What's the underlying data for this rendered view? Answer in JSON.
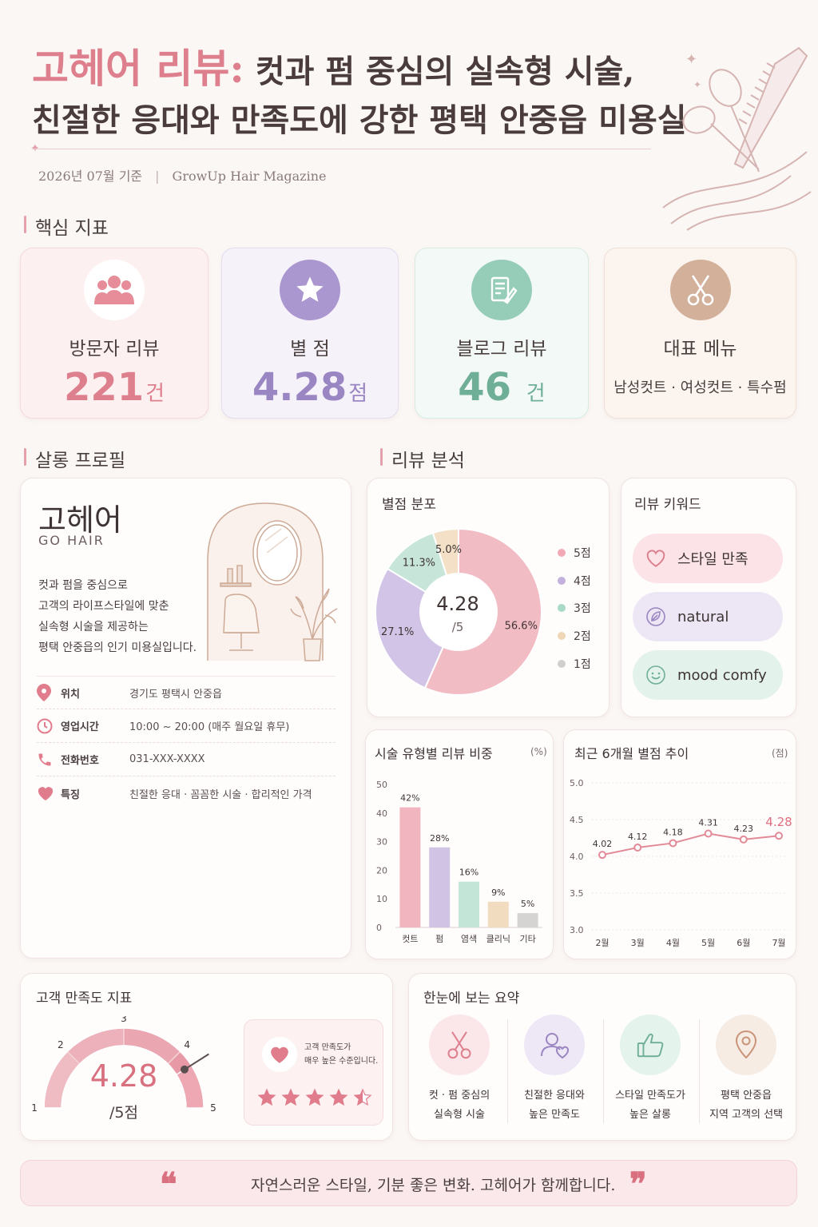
{
  "header": {
    "title_accent": "고헤어 리뷰:",
    "title_rest": " 컷과 펌 중심의 실속형 시술,",
    "title_line2": "친절한 응대와 만족도에 강한 평택 안중읍 미용실",
    "date": "2026년 07월 기준",
    "separator": "|",
    "magazine": "GrowUp Hair Magazine"
  },
  "sections": {
    "kpi": "핵심 지표",
    "profile": "살롱 프로필",
    "analysis": "리뷰 분석"
  },
  "kpis": [
    {
      "label": "방문자 리뷰",
      "value": "221",
      "unit": "건",
      "color": "#de7f8d",
      "icon": "people-icon"
    },
    {
      "label": "별 점",
      "value": "4.28",
      "unit": "점",
      "color": "#9a86c2",
      "icon": "star-icon"
    },
    {
      "label": "블로그 리뷰",
      "value": "46",
      "unit": "건",
      "color": "#6fae97",
      "icon": "document-pen-icon"
    },
    {
      "label": "대표 메뉴",
      "value": "남성컷트 · 여성컷트 · 특수펌",
      "color": "#c79f86",
      "icon": "scissors-icon"
    }
  ],
  "profile": {
    "name": "고헤어",
    "name_en": "GO HAIR",
    "desc": [
      "컷과 펌을 중심으로",
      "고객의 라이프스타일에 맞춘",
      "실속형 시술을 제공하는",
      "평택 안중읍의 인기 미용실입니다."
    ],
    "info": [
      {
        "label": "위치",
        "value": "경기도 평택시 안중읍",
        "icon": "location-pin-icon"
      },
      {
        "label": "영업시간",
        "value": "10:00 ~ 20:00 (매주 월요일 휴무)",
        "icon": "clock-icon"
      },
      {
        "label": "전화번호",
        "value": "031-XXX-XXXX",
        "icon": "phone-icon"
      },
      {
        "label": "특징",
        "value": "친절한 응대 · 꼼꼼한 시술 · 합리적인 가격",
        "icon": "heart-icon"
      }
    ]
  },
  "rating_dist": {
    "title": "별점 분포",
    "center_value": "4.28",
    "center_sub": "/5",
    "chart_data": {
      "type": "pie",
      "labels": [
        "5점",
        "4점",
        "3점",
        "2점",
        "1점"
      ],
      "values": [
        56.6,
        27.1,
        11.3,
        5.0,
        0
      ],
      "value_labels": [
        "56.6%",
        "27.1%",
        "11.3%",
        "5.0%",
        ""
      ],
      "colors": [
        "#f2bcc5",
        "#d2c4e6",
        "#c7e6d9",
        "#f3e0c6",
        "#cfcfcf"
      ]
    }
  },
  "keywords": {
    "title": "리뷰 키워드",
    "items": [
      {
        "label": "스타일 만족",
        "icon": "heart-outline-icon",
        "bg": "#fbe3e7"
      },
      {
        "label": "natural",
        "icon": "leaf-icon",
        "bg": "#ece6f5"
      },
      {
        "label": "mood comfy",
        "icon": "smile-icon",
        "bg": "#e3f2ea"
      }
    ]
  },
  "type_share": {
    "title": "시술 유형별 리뷰 비중",
    "unit": "(%)",
    "chart_data": {
      "type": "bar",
      "categories": [
        "컷트",
        "펌",
        "염색",
        "클리닉",
        "기타"
      ],
      "values": [
        42,
        28,
        16,
        9,
        5
      ],
      "value_labels": [
        "42%",
        "28%",
        "16%",
        "9%",
        "5%"
      ],
      "yticks": [
        "0",
        "10",
        "20",
        "30",
        "40",
        "50"
      ],
      "ylim": [
        0,
        50
      ],
      "colors": [
        "#f0b5bf",
        "#d1c3e4",
        "#c3e5d7",
        "#f2dcc0",
        "#d6d3d3"
      ]
    }
  },
  "trend": {
    "title": "최근 6개월 별점 추이",
    "unit": "(점)",
    "chart_data": {
      "type": "line",
      "categories": [
        "2월",
        "3월",
        "4월",
        "5월",
        "6월",
        "7월"
      ],
      "values": [
        4.02,
        4.12,
        4.18,
        4.31,
        4.23,
        4.28
      ],
      "value_labels": [
        "4.02",
        "4.12",
        "4.18",
        "4.31",
        "4.23",
        "4.28"
      ],
      "yticks": [
        "3.0",
        "3.5",
        "4.0",
        "4.5",
        "5.0"
      ],
      "ylim": [
        3.0,
        5.0
      ],
      "color": "#e28a97"
    }
  },
  "satisfaction": {
    "title": "고객 만족도 지표",
    "value": "4.28",
    "unit": "/5점",
    "gauge_ticks": [
      "1",
      "2",
      "3",
      "4",
      "5"
    ],
    "gauge_level": 4.28,
    "note_line1": "고객 만족도가",
    "note_line2": "매우 높은 수준입니다.",
    "stars": 4.5
  },
  "summary": {
    "title": "한눈에 보는 요약",
    "items": [
      {
        "line1": "컷 · 펌 중심의",
        "line2": "실속형 시술",
        "icon": "scissors-icon",
        "bg": "#fbe6ea"
      },
      {
        "line1": "친절한 응대와",
        "line2": "높은 만족도",
        "icon": "person-heart-icon",
        "bg": "#eee8f6"
      },
      {
        "line1": "스타일 만족도가",
        "line2": "높은 살롱",
        "icon": "thumbs-up-icon",
        "bg": "#e4f3eb"
      },
      {
        "line1": "평택 안중읍",
        "line2": "지역 고객의 선택",
        "icon": "location-pin-icon",
        "bg": "#f7ece4"
      }
    ]
  },
  "quote": {
    "open": "❝",
    "text": "자연스러운 스타일, 기분 좋은 변화.  고헤어가 함께합니다.",
    "close": "❞"
  }
}
